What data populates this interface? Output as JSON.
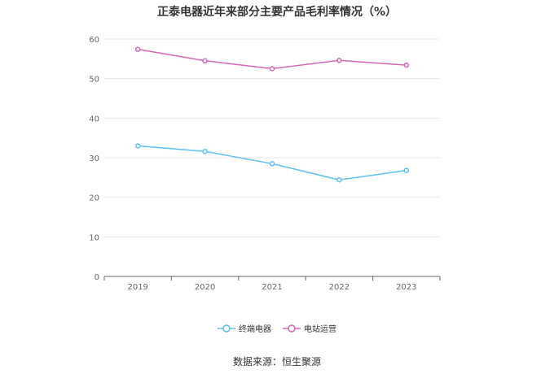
{
  "chart_data": {
    "type": "line",
    "title": "正泰电器近年来部分主要产品毛利率情况（%）",
    "categories": [
      "2019",
      "2020",
      "2021",
      "2022",
      "2023"
    ],
    "series": [
      {
        "name": "终端电器",
        "values": [
          33.0,
          31.6,
          28.5,
          24.4,
          26.8
        ],
        "color": "#5bc0f2",
        "icon": "circle-marker-icon"
      },
      {
        "name": "电站运营",
        "values": [
          57.4,
          54.5,
          52.5,
          54.6,
          53.4
        ],
        "color": "#d368b4",
        "icon": "circle-marker-icon"
      }
    ],
    "ylim": [
      0,
      60
    ],
    "yticks": [
      0,
      10,
      20,
      30,
      40,
      50,
      60
    ],
    "grid": true,
    "legend_position": "bottom",
    "xlabel": "",
    "ylabel": ""
  },
  "source": "数据来源：恒生聚源"
}
